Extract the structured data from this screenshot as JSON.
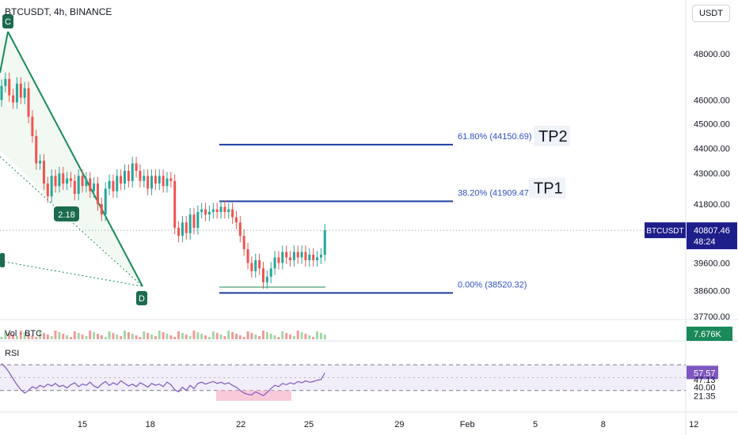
{
  "header": {
    "symbol_title": "BTCUSDT, 4h, BINANCE",
    "currency": "USDT"
  },
  "chart_data": {
    "type": "candlestick",
    "symbol": "BTCUSDT",
    "interval": "4h",
    "exchange": "BINANCE",
    "price_axis": {
      "ticks": [
        48000,
        46000,
        45000,
        44000,
        43000,
        41800,
        39600,
        38600,
        37700
      ],
      "tick_labels": [
        "48000.00",
        "46000.00",
        "45000.00",
        "44000.00",
        "43000.00",
        "41800.00",
        "39600.00",
        "38600.00",
        "37700.00"
      ],
      "scale": "log"
    },
    "time_axis": {
      "ticks": [
        "15",
        "18",
        "22",
        "25",
        "29",
        "Feb",
        "5",
        "8",
        "12"
      ]
    },
    "last_price": {
      "symbol_badge": "BTCUSDT",
      "price": "40807.46",
      "countdown": "48:24",
      "value": 40807.46
    },
    "candles_close": [
      46600,
      46900,
      46200,
      45900,
      46700,
      46100,
      46500,
      45300,
      44500,
      43400,
      43500,
      42600,
      42100,
      42900,
      42500,
      43000,
      42600,
      42800,
      42700,
      42200,
      42900,
      42500,
      42800,
      42300,
      42600,
      41800,
      41400,
      42400,
      42700,
      42300,
      42900,
      42600,
      43100,
      42700,
      43400,
      43100,
      42700,
      42900,
      42400,
      42900,
      42600,
      42900,
      42500,
      42800,
      42700,
      40900,
      40600,
      41100,
      40700,
      41400,
      40900,
      41500,
      41600,
      41400,
      41500,
      41600,
      41500,
      41700,
      41500,
      41600,
      41300,
      41100,
      40600,
      40100,
      39600,
      39300,
      39700,
      39400,
      38900,
      39100,
      39400,
      39800,
      39600,
      40000,
      39800,
      39700,
      40000,
      39800,
      40000,
      39700,
      39900,
      39700,
      39800,
      39900,
      40807
    ],
    "volume": {
      "label": "Vol · BTC",
      "value_badge": "7.676K"
    },
    "rsi": {
      "label": "RSI",
      "value": "57.57",
      "ticks": [
        "47.13",
        "40.00",
        "21.35"
      ],
      "series": [
        72,
        66,
        58,
        48,
        39,
        31,
        26,
        30,
        36,
        33,
        38,
        35,
        40,
        37,
        41,
        36,
        38,
        34,
        39,
        42,
        36,
        40,
        38,
        43,
        37,
        34,
        40,
        44,
        38,
        42,
        39,
        45,
        41,
        37,
        40,
        36,
        42,
        39,
        35,
        41,
        38,
        40,
        36,
        43,
        39,
        31,
        28,
        35,
        30,
        38,
        33,
        41,
        43,
        40,
        42,
        44,
        41,
        43,
        40,
        42,
        38,
        35,
        30,
        26,
        24,
        23,
        28,
        25,
        22,
        27,
        33,
        38,
        36,
        41,
        39,
        42,
        40,
        44,
        42,
        45,
        43,
        44,
        46,
        47,
        57.57
      ]
    },
    "fibonacci": [
      {
        "label": "61.80% (44150.69)",
        "price": 44150.69
      },
      {
        "label": "38.20% (41909.47)",
        "price": 41909.47
      },
      {
        "label": "0.00% (38520.32)",
        "price": 38520.32
      }
    ],
    "targets": [
      "TP2",
      "TP1"
    ],
    "pattern_points": [
      "C",
      "D"
    ],
    "pattern_ratio": "2.18"
  }
}
